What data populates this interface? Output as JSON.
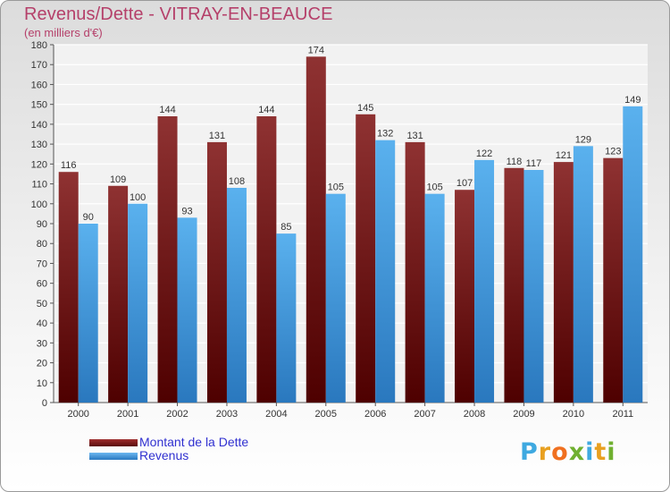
{
  "chart_data": {
    "type": "bar",
    "title": "Revenus/Dette - VITRAY-EN-BEAUCE",
    "subtitle": "(en milliers d'€)",
    "categories": [
      "2000",
      "2001",
      "2002",
      "2003",
      "2004",
      "2005",
      "2006",
      "2007",
      "2008",
      "2009",
      "2010",
      "2011"
    ],
    "series": [
      {
        "name": "Montant de la Dette",
        "color": "#7a1c1c",
        "values": [
          116,
          109,
          144,
          131,
          144,
          174,
          145,
          131,
          107,
          118,
          121,
          123
        ]
      },
      {
        "name": "Revenus",
        "color": "#3b94dc",
        "values": [
          90,
          100,
          93,
          108,
          85,
          105,
          132,
          105,
          122,
          117,
          129,
          149
        ]
      }
    ],
    "ylim": [
      0,
      180
    ],
    "yticks": [
      0,
      10,
      20,
      30,
      40,
      50,
      60,
      70,
      80,
      90,
      100,
      110,
      120,
      130,
      140,
      150,
      160,
      170,
      180
    ],
    "grid": true,
    "legend_position": "bottom-left"
  },
  "logo": {
    "letters": [
      "P",
      "r",
      "o",
      "x",
      "i",
      "t",
      "i"
    ]
  }
}
